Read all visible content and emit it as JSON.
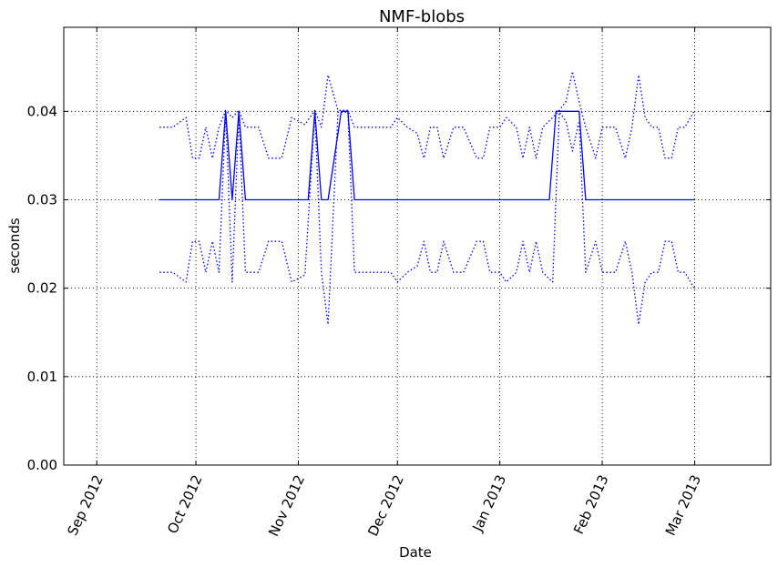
{
  "chart_data": {
    "type": "line",
    "title": "NMF-blobs",
    "xlabel": "Date",
    "ylabel": "seconds",
    "xlim": [
      "2012-08-22",
      "2013-03-24"
    ],
    "ylim": [
      0,
      0.0495
    ],
    "grid": true,
    "x_ticks": [
      {
        "date": "2012-09-01",
        "label": "Sep 2012"
      },
      {
        "date": "2012-10-01",
        "label": "Oct 2012"
      },
      {
        "date": "2012-11-01",
        "label": "Nov 2012"
      },
      {
        "date": "2012-12-01",
        "label": "Dec 2012"
      },
      {
        "date": "2013-01-01",
        "label": "Jan 2013"
      },
      {
        "date": "2013-02-01",
        "label": "Feb 2013"
      },
      {
        "date": "2013-03-01",
        "label": "Mar 2013"
      }
    ],
    "y_ticks": [
      {
        "value": 0.0,
        "label": "0.00"
      },
      {
        "value": 0.01,
        "label": "0.01"
      },
      {
        "value": 0.02,
        "label": "0.02"
      },
      {
        "value": 0.03,
        "label": "0.03"
      },
      {
        "value": 0.04,
        "label": "0.04"
      }
    ],
    "colors": {
      "line": "#0000ff",
      "axes": "#000000"
    },
    "series": [
      {
        "style": "solid",
        "points": [
          [
            "2012-09-20",
            0.03
          ],
          [
            "2012-10-08",
            0.03
          ],
          [
            "2012-10-10",
            0.04
          ],
          [
            "2012-10-12",
            0.03
          ],
          [
            "2012-10-14",
            0.04
          ],
          [
            "2012-10-16",
            0.03
          ],
          [
            "2012-11-04",
            0.03
          ],
          [
            "2012-11-06",
            0.04
          ],
          [
            "2012-11-08",
            0.03
          ],
          [
            "2012-11-10",
            0.03
          ],
          [
            "2012-11-14",
            0.04
          ],
          [
            "2012-11-16",
            0.04
          ],
          [
            "2012-11-18",
            0.03
          ],
          [
            "2013-01-16",
            0.03
          ],
          [
            "2013-01-18",
            0.04
          ],
          [
            "2013-01-25",
            0.04
          ],
          [
            "2013-01-27",
            0.03
          ],
          [
            "2013-03-01",
            0.03
          ]
        ]
      },
      {
        "style": "dotted",
        "points": [
          [
            "2012-09-20",
            0.0382
          ],
          [
            "2012-09-24",
            0.0382
          ],
          [
            "2012-09-28",
            0.0393
          ],
          [
            "2012-09-30",
            0.0347
          ],
          [
            "2012-10-02",
            0.0347
          ],
          [
            "2012-10-04",
            0.0382
          ],
          [
            "2012-10-06",
            0.0347
          ],
          [
            "2012-10-08",
            0.0382
          ],
          [
            "2012-10-10",
            0.0401
          ],
          [
            "2012-10-12",
            0.0393
          ],
          [
            "2012-10-14",
            0.0401
          ],
          [
            "2012-10-16",
            0.0382
          ],
          [
            "2012-10-20",
            0.0382
          ],
          [
            "2012-10-23",
            0.0347
          ],
          [
            "2012-10-27",
            0.0347
          ],
          [
            "2012-10-30",
            0.0393
          ],
          [
            "2012-11-03",
            0.0385
          ],
          [
            "2012-11-06",
            0.0401
          ],
          [
            "2012-11-08",
            0.0382
          ],
          [
            "2012-11-10",
            0.0441
          ],
          [
            "2012-11-13",
            0.0401
          ],
          [
            "2012-11-16",
            0.0401
          ],
          [
            "2012-11-18",
            0.0382
          ],
          [
            "2012-11-25",
            0.0382
          ],
          [
            "2012-11-29",
            0.0382
          ],
          [
            "2012-12-01",
            0.0393
          ],
          [
            "2012-12-04",
            0.0382
          ],
          [
            "2012-12-07",
            0.0375
          ],
          [
            "2012-12-09",
            0.0347
          ],
          [
            "2012-12-11",
            0.0382
          ],
          [
            "2012-12-13",
            0.0382
          ],
          [
            "2012-12-15",
            0.0347
          ],
          [
            "2012-12-18",
            0.0382
          ],
          [
            "2012-12-21",
            0.0382
          ],
          [
            "2012-12-25",
            0.0347
          ],
          [
            "2012-12-27",
            0.0347
          ],
          [
            "2012-12-29",
            0.0382
          ],
          [
            "2013-01-01",
            0.0382
          ],
          [
            "2013-01-03",
            0.0393
          ],
          [
            "2013-01-06",
            0.0382
          ],
          [
            "2013-01-08",
            0.0347
          ],
          [
            "2013-01-10",
            0.0382
          ],
          [
            "2013-01-12",
            0.0347
          ],
          [
            "2013-01-14",
            0.0382
          ],
          [
            "2013-01-17",
            0.0393
          ],
          [
            "2013-01-19",
            0.0401
          ],
          [
            "2013-01-21",
            0.0411
          ],
          [
            "2013-01-23",
            0.0445
          ],
          [
            "2013-01-25",
            0.0411
          ],
          [
            "2013-01-27",
            0.0382
          ],
          [
            "2013-01-30",
            0.0347
          ],
          [
            "2013-02-01",
            0.0382
          ],
          [
            "2013-02-05",
            0.0382
          ],
          [
            "2013-02-08",
            0.0347
          ],
          [
            "2013-02-10",
            0.0382
          ],
          [
            "2013-02-12",
            0.0441
          ],
          [
            "2013-02-14",
            0.0393
          ],
          [
            "2013-02-16",
            0.0382
          ],
          [
            "2013-02-18",
            0.0382
          ],
          [
            "2013-02-20",
            0.0347
          ],
          [
            "2013-02-22",
            0.0347
          ],
          [
            "2013-02-24",
            0.0382
          ],
          [
            "2013-02-26",
            0.0382
          ],
          [
            "2013-03-01",
            0.0401
          ]
        ]
      },
      {
        "style": "dotted",
        "points": [
          [
            "2012-09-20",
            0.0218
          ],
          [
            "2012-09-24",
            0.0218
          ],
          [
            "2012-09-28",
            0.0207
          ],
          [
            "2012-09-30",
            0.0253
          ],
          [
            "2012-10-02",
            0.0253
          ],
          [
            "2012-10-04",
            0.0218
          ],
          [
            "2012-10-06",
            0.0253
          ],
          [
            "2012-10-08",
            0.0218
          ],
          [
            "2012-10-10",
            0.0399
          ],
          [
            "2012-10-12",
            0.0207
          ],
          [
            "2012-10-14",
            0.0399
          ],
          [
            "2012-10-16",
            0.0218
          ],
          [
            "2012-10-20",
            0.0218
          ],
          [
            "2012-10-23",
            0.0253
          ],
          [
            "2012-10-27",
            0.0253
          ],
          [
            "2012-10-30",
            0.0207
          ],
          [
            "2012-11-03",
            0.0215
          ],
          [
            "2012-11-06",
            0.0399
          ],
          [
            "2012-11-08",
            0.0218
          ],
          [
            "2012-11-10",
            0.0159
          ],
          [
            "2012-11-13",
            0.0399
          ],
          [
            "2012-11-16",
            0.0399
          ],
          [
            "2012-11-18",
            0.0218
          ],
          [
            "2012-11-25",
            0.0218
          ],
          [
            "2012-11-29",
            0.0218
          ],
          [
            "2012-12-01",
            0.0207
          ],
          [
            "2012-12-04",
            0.0218
          ],
          [
            "2012-12-07",
            0.0225
          ],
          [
            "2012-12-09",
            0.0253
          ],
          [
            "2012-12-11",
            0.0218
          ],
          [
            "2012-12-13",
            0.0218
          ],
          [
            "2012-12-15",
            0.0253
          ],
          [
            "2012-12-18",
            0.0218
          ],
          [
            "2012-12-21",
            0.0218
          ],
          [
            "2012-12-25",
            0.0253
          ],
          [
            "2012-12-27",
            0.0253
          ],
          [
            "2012-12-29",
            0.0218
          ],
          [
            "2013-01-01",
            0.0218
          ],
          [
            "2013-01-03",
            0.0207
          ],
          [
            "2013-01-06",
            0.0218
          ],
          [
            "2013-01-08",
            0.0253
          ],
          [
            "2013-01-10",
            0.0218
          ],
          [
            "2013-01-12",
            0.0253
          ],
          [
            "2013-01-14",
            0.0218
          ],
          [
            "2013-01-17",
            0.0207
          ],
          [
            "2013-01-19",
            0.0399
          ],
          [
            "2013-01-21",
            0.0389
          ],
          [
            "2013-01-23",
            0.0355
          ],
          [
            "2013-01-25",
            0.0389
          ],
          [
            "2013-01-27",
            0.0218
          ],
          [
            "2013-01-30",
            0.0253
          ],
          [
            "2013-02-01",
            0.0218
          ],
          [
            "2013-02-05",
            0.0218
          ],
          [
            "2013-02-08",
            0.0253
          ],
          [
            "2013-02-10",
            0.0218
          ],
          [
            "2013-02-12",
            0.0159
          ],
          [
            "2013-02-14",
            0.0207
          ],
          [
            "2013-02-16",
            0.0218
          ],
          [
            "2013-02-18",
            0.0218
          ],
          [
            "2013-02-20",
            0.0253
          ],
          [
            "2013-02-22",
            0.0253
          ],
          [
            "2013-02-24",
            0.0218
          ],
          [
            "2013-02-26",
            0.0218
          ],
          [
            "2013-03-01",
            0.0199
          ]
        ]
      }
    ]
  }
}
